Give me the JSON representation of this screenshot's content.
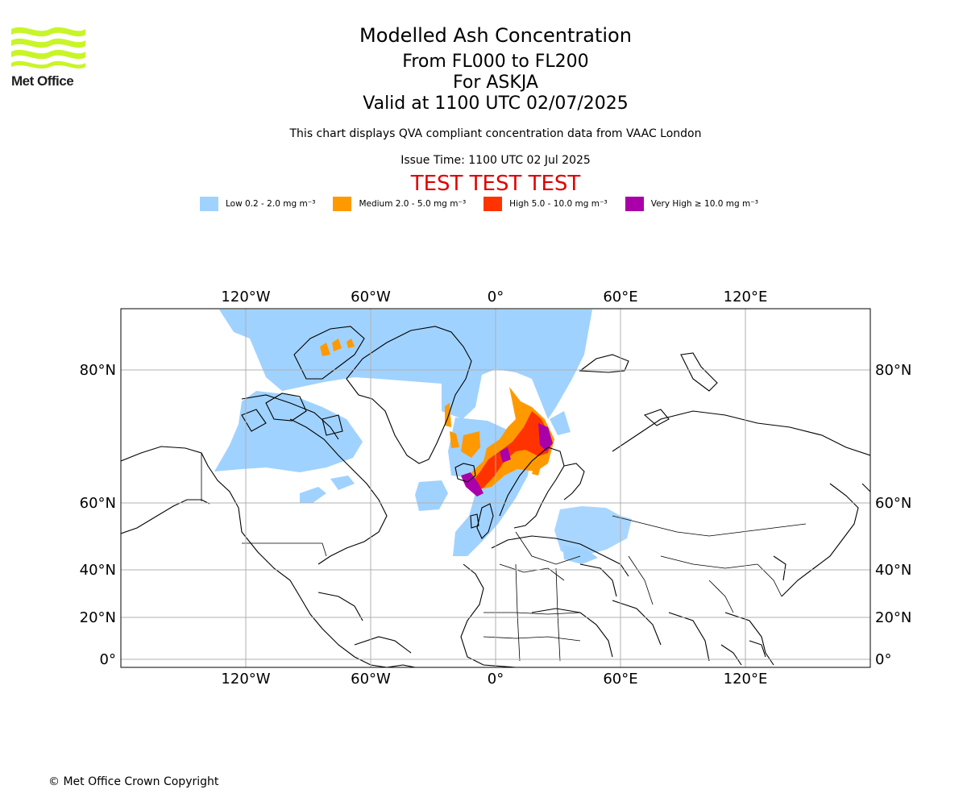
{
  "logo": {
    "text": "Met Office",
    "wave_color": "#c8f527"
  },
  "titles": {
    "main": "Modelled Ash Concentration",
    "levels": "From FL000 to FL200",
    "volcano": "For ASKJA",
    "valid": "Valid at 1100 UTC 02/07/2025",
    "note": "This chart displays QVA compliant concentration data from VAAC London",
    "issue": "Issue Time: 1100 UTC 02 Jul 2025",
    "test": "TEST TEST TEST"
  },
  "legend": [
    {
      "label": "Low 0.2 - 2.0 mg m⁻³",
      "color": "#a0d2ff"
    },
    {
      "label": "Medium 2.0 - 5.0 mg m⁻³",
      "color": "#ff9900"
    },
    {
      "label": "High 5.0 - 10.0 mg m⁻³",
      "color": "#ff3300"
    },
    {
      "label": "Very High ≥ 10.0 mg m⁻³",
      "color": "#aa00aa"
    }
  ],
  "map": {
    "lon_ticks": [
      "120°W",
      "60°W",
      "0°",
      "60°E",
      "120°E"
    ],
    "lat_ticks": [
      "80°N",
      "60°N",
      "40°N",
      "20°N",
      "0°"
    ]
  },
  "footer": {
    "copyright": "© Met Office Crown Copyright"
  }
}
